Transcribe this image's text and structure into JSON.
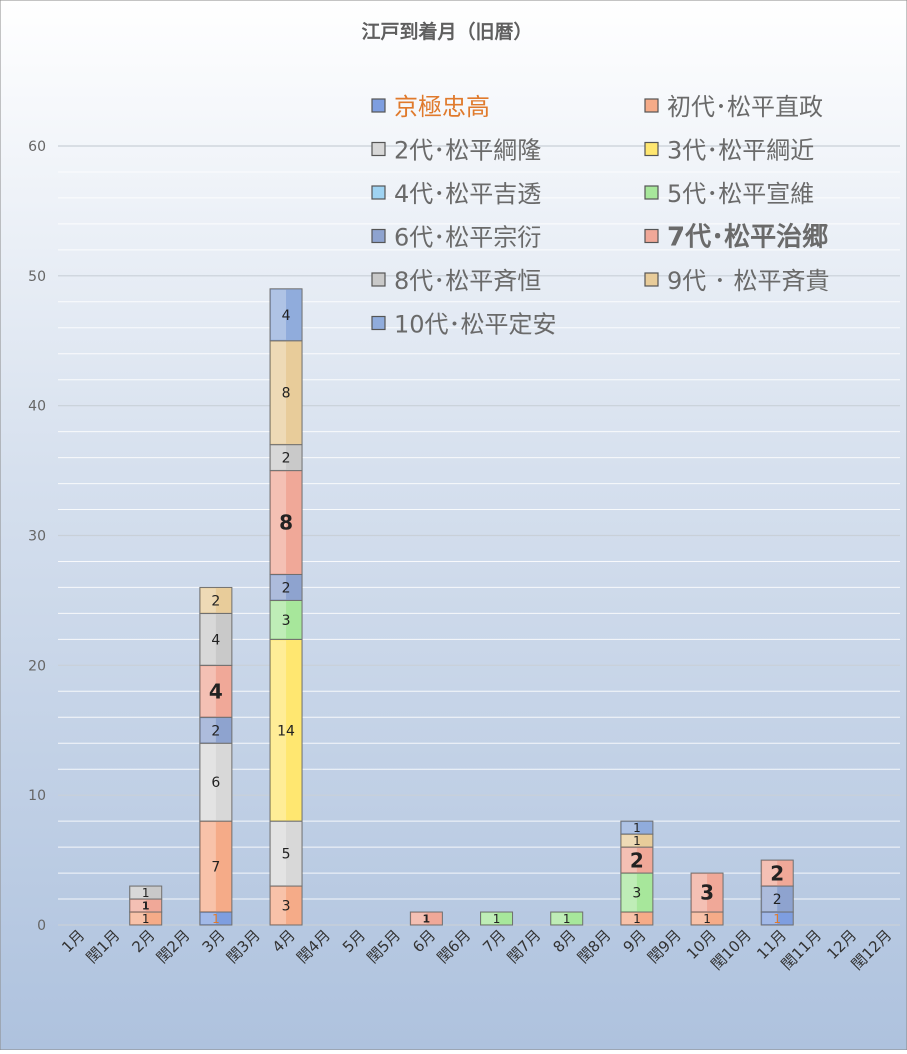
{
  "chart_data": {
    "type": "bar",
    "stacked": true,
    "title": "江戸到着月（旧暦）",
    "xlabel": "",
    "ylabel": "",
    "ylim": [
      0,
      60
    ],
    "yticks": [
      0,
      10,
      20,
      30,
      40,
      50,
      60
    ],
    "grid": true,
    "legend_position": "top-right (inside plot)",
    "categories": [
      "1月",
      "閏1月",
      "2月",
      "閏2月",
      "3月",
      "閏3月",
      "4月",
      "閏4月",
      "5月",
      "閏5月",
      "6月",
      "閏6月",
      "7月",
      "閏7月",
      "8月",
      "閏8月",
      "9月",
      "閏9月",
      "10月",
      "閏10月",
      "11月",
      "閏11月",
      "12月",
      "閏12月"
    ],
    "series": [
      {
        "name": "京極忠高",
        "color": "#7e9ee0",
        "values": [
          0,
          0,
          0,
          0,
          1,
          0,
          0,
          0,
          0,
          0,
          0,
          0,
          0,
          0,
          0,
          0,
          0,
          0,
          0,
          0,
          1,
          0,
          0,
          0
        ]
      },
      {
        "name": "初代･松平直政",
        "color": "#f5ab88",
        "values": [
          0,
          0,
          1,
          0,
          7,
          0,
          3,
          0,
          0,
          0,
          0,
          0,
          0,
          0,
          0,
          0,
          1,
          0,
          1,
          0,
          0,
          0,
          0,
          0
        ]
      },
      {
        "name": "2代･松平綱隆",
        "color": "#d8d8d8",
        "values": [
          0,
          0,
          0,
          0,
          6,
          0,
          5,
          0,
          0,
          0,
          0,
          0,
          0,
          0,
          0,
          0,
          0,
          0,
          0,
          0,
          0,
          0,
          0,
          0
        ]
      },
      {
        "name": "3代･松平綱近",
        "color": "#ffe770",
        "values": [
          0,
          0,
          0,
          0,
          0,
          0,
          14,
          0,
          0,
          0,
          0,
          0,
          0,
          0,
          0,
          0,
          0,
          0,
          0,
          0,
          0,
          0,
          0,
          0
        ]
      },
      {
        "name": "4代･松平吉透",
        "color": "#9fd3f2",
        "values": [
          0,
          0,
          0,
          0,
          0,
          0,
          0,
          0,
          0,
          0,
          0,
          0,
          0,
          0,
          0,
          0,
          0,
          0,
          0,
          0,
          0,
          0,
          0,
          0
        ]
      },
      {
        "name": "5代･松平宣維",
        "color": "#a7e79b",
        "values": [
          0,
          0,
          0,
          0,
          0,
          0,
          3,
          0,
          0,
          0,
          0,
          0,
          1,
          0,
          1,
          0,
          3,
          0,
          0,
          0,
          0,
          0,
          0,
          0
        ]
      },
      {
        "name": "6代･松平宗衍",
        "color": "#8ea3cf",
        "values": [
          0,
          0,
          0,
          0,
          2,
          0,
          2,
          0,
          0,
          0,
          0,
          0,
          0,
          0,
          0,
          0,
          0,
          0,
          0,
          0,
          2,
          0,
          0,
          0
        ]
      },
      {
        "name": "7代･松平治郷",
        "color": "#f0a898",
        "values": [
          0,
          0,
          1,
          0,
          4,
          0,
          8,
          0,
          0,
          0,
          1,
          0,
          0,
          0,
          0,
          0,
          2,
          0,
          3,
          0,
          2,
          0,
          0,
          0
        ]
      },
      {
        "name": "8代･松平斉恒",
        "color": "#c9c9c9",
        "values": [
          0,
          0,
          1,
          0,
          4,
          0,
          2,
          0,
          0,
          0,
          0,
          0,
          0,
          0,
          0,
          0,
          0,
          0,
          0,
          0,
          0,
          0,
          0,
          0
        ]
      },
      {
        "name": "9代 ･ 松平斉貴",
        "color": "#e8cc9a",
        "values": [
          0,
          0,
          0,
          0,
          2,
          0,
          8,
          0,
          0,
          0,
          0,
          0,
          0,
          0,
          0,
          0,
          1,
          0,
          0,
          0,
          0,
          0,
          0,
          0
        ]
      },
      {
        "name": "10代･松平定安",
        "color": "#90acdc",
        "values": [
          0,
          0,
          0,
          0,
          0,
          0,
          4,
          0,
          0,
          0,
          0,
          0,
          0,
          0,
          0,
          0,
          1,
          0,
          0,
          0,
          0,
          0,
          0,
          0
        ]
      }
    ],
    "colors": {
      "background_top": "#ffffff",
      "background_bottom": "#a9bedb",
      "title_color": "#5f5f5f",
      "axis_text_color": "#666666",
      "legend_text_color": "#6a6a6a",
      "highlight_legend_color": "#e07a2c"
    }
  }
}
